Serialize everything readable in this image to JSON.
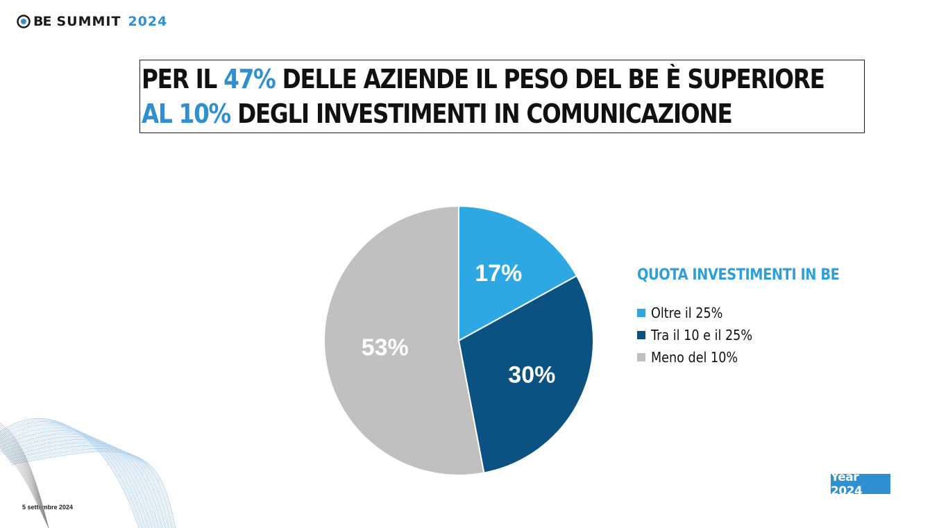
{
  "logo": {
    "be": "BE",
    "summit": "SUMMIT",
    "year": "2024"
  },
  "headline": {
    "line1": {
      "pre": "PER IL ",
      "highlight": "47%",
      "post": " DELLE AZIENDE IL PESO DEL BE È SUPERIORE"
    },
    "line2": {
      "highlight": "AL 10%",
      "post": " DEGLI INVESTIMENTI IN COMUNICAZIONE"
    }
  },
  "colors": {
    "accent": "#2f8fd0",
    "slice_light_blue": "#2ea8e3",
    "slice_dark_blue": "#0b5283",
    "slice_gray": "#c0c0c0"
  },
  "chart_data": {
    "type": "pie",
    "title": "",
    "legend_title": "QUOTA INVESTIMENTI IN BE",
    "legend_position": "right",
    "categories": [
      "Oltre il 25%",
      "Tra il 10 e il 25%",
      "Meno del 10%"
    ],
    "values": [
      17,
      30,
      53
    ],
    "labels": [
      "17%",
      "30%",
      "53%"
    ],
    "colors": [
      "#2ea8e3",
      "#0b5283",
      "#c0c0c0"
    ]
  },
  "footer": {
    "year_badge": "Year 2024",
    "date": "5 settembre 2024"
  }
}
